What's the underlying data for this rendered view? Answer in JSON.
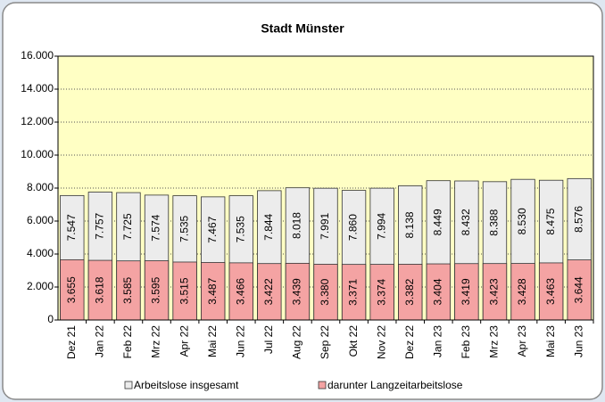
{
  "chart_data": {
    "type": "overlap-bar",
    "title": "Stadt Münster",
    "categories": [
      "Dez 21",
      "Jan 22",
      "Feb 22",
      "Mrz 22",
      "Apr 22",
      "Mai 22",
      "Jun 22",
      "Jul 22",
      "Aug 22",
      "Sep 22",
      "Okt 22",
      "Nov 22",
      "Dez 22",
      "Jan 23",
      "Feb 23",
      "Mrz 23",
      "Apr 23",
      "Mai 23",
      "Jun 23"
    ],
    "series": [
      {
        "name": "Arbeitslose insgesamt",
        "color": "#ececec",
        "values": [
          7547,
          7757,
          7725,
          7574,
          7535,
          7467,
          7535,
          7844,
          8018,
          7991,
          7860,
          7994,
          8138,
          8449,
          8432,
          8388,
          8530,
          8475,
          8576
        ],
        "value_labels": [
          "7.547",
          "7.757",
          "7.725",
          "7.574",
          "7.535",
          "7.467",
          "7.535",
          "7.844",
          "8.018",
          "7.991",
          "7.860",
          "7.994",
          "8.138",
          "8.449",
          "8.432",
          "8.388",
          "8.530",
          "8.475",
          "8.576"
        ]
      },
      {
        "name": "darunter Langzeitarbeitslose",
        "color": "#f4a3a3",
        "values": [
          3655,
          3618,
          3585,
          3595,
          3515,
          3487,
          3466,
          3422,
          3439,
          3380,
          3371,
          3374,
          3382,
          3404,
          3419,
          3423,
          3428,
          3463,
          3644
        ],
        "value_labels": [
          "3.655",
          "3.618",
          "3.585",
          "3.595",
          "3.515",
          "3.487",
          "3.466",
          "3.422",
          "3.439",
          "3.380",
          "3.371",
          "3.374",
          "3.382",
          "3.404",
          "3.419",
          "3.423",
          "3.428",
          "3.463",
          "3.644"
        ]
      }
    ],
    "ylim": [
      0,
      16000
    ],
    "yticks": [
      {
        "value": 0,
        "label": "0"
      },
      {
        "value": 2000,
        "label": "2.000"
      },
      {
        "value": 4000,
        "label": "4.000"
      },
      {
        "value": 6000,
        "label": "6.000"
      },
      {
        "value": 8000,
        "label": "8.000"
      },
      {
        "value": 10000,
        "label": "10.000"
      },
      {
        "value": 12000,
        "label": "12.000"
      },
      {
        "value": 14000,
        "label": "14.000"
      },
      {
        "value": 16000,
        "label": "16.000"
      }
    ],
    "grid": true,
    "plot_background": "#ffffc4"
  }
}
